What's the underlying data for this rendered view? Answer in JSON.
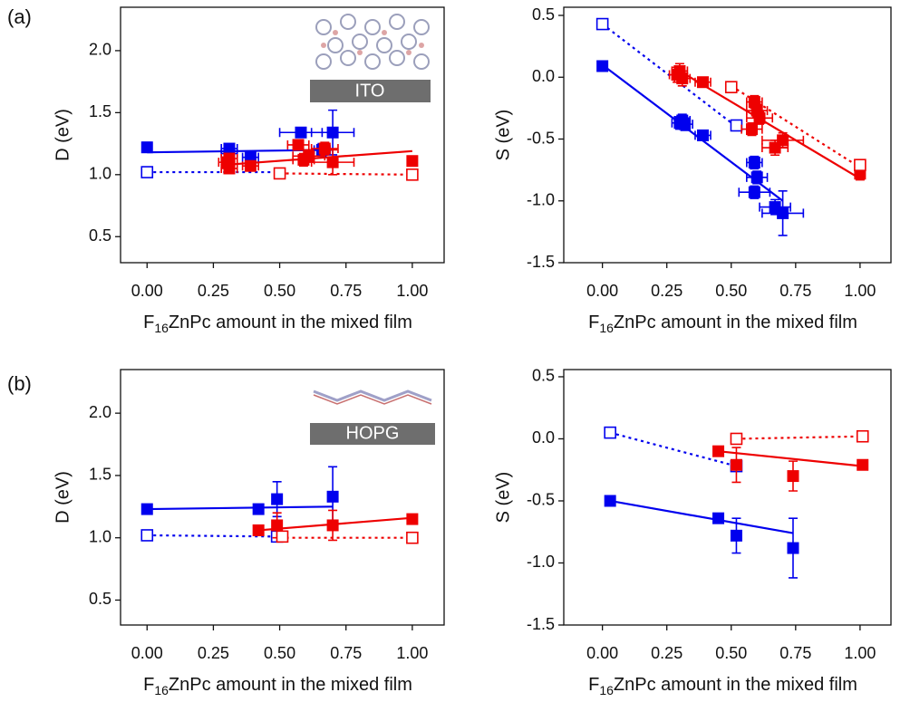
{
  "chart_data": [
    {
      "type": "scatter",
      "panel_label": "(a)",
      "y_label": "D (eV)",
      "x_label": [
        "F",
        "16",
        "ZnPc amount in the mixed film"
      ],
      "inset_label": "ITO",
      "xlim": [
        -0.1,
        1.12
      ],
      "ylim": [
        0.29,
        2.35
      ],
      "xticks": [
        {
          "value": 0,
          "label": "0.00"
        },
        {
          "value": 0.25,
          "label": "0.25"
        },
        {
          "value": 0.5,
          "label": "0.50"
        },
        {
          "value": 0.75,
          "label": "0.75"
        },
        {
          "value": 1,
          "label": "1.00"
        }
      ],
      "yticks": [
        0.5,
        {
          "value": 1,
          "label": "1.0"
        },
        1.5,
        {
          "value": 2,
          "label": "2.0"
        }
      ],
      "series": [
        {
          "color": "#0000ee",
          "marker": "filled",
          "x": [
            0,
            0.31,
            0.31,
            0.39,
            0.58,
            0.66,
            0.7
          ],
          "values": [
            1.22,
            1.21,
            1.17,
            1.14,
            1.34,
            1.2,
            1.34
          ],
          "xerr": [
            null,
            0.03,
            0.03,
            0.03,
            0.08,
            0.03,
            0.08
          ],
          "yerr": [
            0.04,
            0.03,
            0.03,
            null,
            0.03,
            0.05,
            0.18
          ]
        },
        {
          "color": "#0000ee",
          "marker": "open",
          "x": [
            0
          ],
          "values": [
            1.02
          ],
          "xerr": [
            null
          ],
          "yerr": [
            null
          ]
        },
        {
          "color": "#ee0000",
          "marker": "filled",
          "x": [
            0.3,
            0.31,
            0.31,
            0.39,
            0.57,
            0.59,
            0.61,
            0.67,
            0.7,
            1
          ],
          "values": [
            1.1,
            1.05,
            1.13,
            1.07,
            1.24,
            1.12,
            1.15,
            1.21,
            1.1,
            1.11
          ],
          "xerr": [
            0.03,
            0.03,
            0.03,
            0.03,
            0.04,
            0.04,
            0.06,
            0.05,
            0.08,
            null
          ],
          "yerr": [
            0.04,
            0.04,
            0.04,
            0.03,
            0.04,
            0.05,
            0.05,
            0.05,
            0.1,
            0.03
          ]
        },
        {
          "color": "#ee0000",
          "marker": "open",
          "x": [
            0.5,
            1
          ],
          "values": [
            1.01,
            1.0
          ],
          "xerr": [
            null,
            null
          ],
          "yerr": [
            null,
            null
          ]
        }
      ],
      "fits": [
        {
          "color": "#0000ee",
          "style": "solid",
          "x": [
            0,
            0.7
          ],
          "values": [
            1.18,
            1.2
          ]
        },
        {
          "color": "#ee0000",
          "style": "solid",
          "x": [
            0.3,
            1
          ],
          "values": [
            1.08,
            1.19
          ]
        },
        {
          "color": "#0000ee",
          "style": "dotted",
          "x": [
            0,
            0.5
          ],
          "values": [
            1.02,
            1.02
          ]
        },
        {
          "color": "#ee0000",
          "style": "dotted",
          "x": [
            0.5,
            1
          ],
          "values": [
            1.01,
            1.0
          ]
        }
      ]
    },
    {
      "type": "scatter",
      "y_label": "S (eV)",
      "x_label": [
        "F",
        "16",
        "ZnPc amount in the mixed film"
      ],
      "xlim": [
        -0.15,
        1.12
      ],
      "ylim": [
        -1.5,
        0.566
      ],
      "xticks": [
        {
          "value": 0,
          "label": "0.00"
        },
        {
          "value": 0.25,
          "label": "0.25"
        },
        {
          "value": 0.5,
          "label": "0.50"
        },
        {
          "value": 0.75,
          "label": "0.75"
        },
        {
          "value": 1,
          "label": "1.00"
        }
      ],
      "yticks": [
        0.5,
        {
          "value": 0,
          "label": "0.0"
        },
        -0.5,
        {
          "value": -1,
          "label": "-1.0"
        },
        -1.5
      ],
      "series": [
        {
          "color": "#0000ee",
          "marker": "filled",
          "x": [
            0,
            0.3,
            0.31,
            0.32,
            0.39,
            0.59,
            0.6,
            0.59,
            0.67,
            0.7
          ],
          "values": [
            0.09,
            -0.37,
            -0.35,
            -0.38,
            -0.47,
            -0.69,
            -0.81,
            -0.93,
            -1.05,
            -1.1
          ],
          "xerr": [
            null,
            0.03,
            0.03,
            0.03,
            0.03,
            0.03,
            0.04,
            0.06,
            0.06,
            0.08
          ],
          "yerr": [
            0.03,
            0.05,
            0.05,
            0.05,
            0.04,
            0.05,
            0.05,
            0.05,
            0.06,
            0.18
          ]
        },
        {
          "color": "#0000ee",
          "marker": "open",
          "x": [
            0,
            0.52
          ],
          "values": [
            0.43,
            -0.39
          ],
          "xerr": [
            null,
            null
          ],
          "yerr": [
            null,
            null
          ]
        },
        {
          "color": "#ee0000",
          "marker": "filled",
          "x": [
            0.29,
            0.3,
            0.31,
            0.39,
            0.58,
            0.59,
            0.6,
            0.61,
            0.67,
            0.7,
            1
          ],
          "values": [
            0.02,
            0.05,
            -0.01,
            -0.04,
            -0.42,
            -0.2,
            -0.27,
            -0.33,
            -0.57,
            -0.51,
            -0.78
          ],
          "xerr": [
            0.03,
            0.03,
            0.03,
            0.03,
            0.04,
            0.03,
            0.04,
            0.05,
            0.05,
            0.08,
            null
          ],
          "yerr": [
            0.06,
            0.06,
            0.06,
            0.04,
            0.05,
            0.05,
            0.05,
            0.05,
            0.06,
            0.06,
            0.05
          ]
        },
        {
          "color": "#ee0000",
          "marker": "open",
          "x": [
            0.5,
            1
          ],
          "values": [
            -0.08,
            -0.71
          ],
          "xerr": [
            null,
            null
          ],
          "yerr": [
            null,
            null
          ]
        }
      ],
      "fits": [
        {
          "color": "#0000ee",
          "style": "solid",
          "x": [
            0,
            0.7
          ],
          "values": [
            0.1,
            -1.0
          ]
        },
        {
          "color": "#ee0000",
          "style": "solid",
          "x": [
            0.3,
            1
          ],
          "values": [
            0.05,
            -0.82
          ]
        },
        {
          "color": "#0000ee",
          "style": "dotted",
          "x": [
            0,
            0.52
          ],
          "values": [
            0.43,
            -0.4
          ]
        },
        {
          "color": "#ee0000",
          "style": "dotted",
          "x": [
            0.5,
            1
          ],
          "values": [
            -0.07,
            -0.73
          ]
        }
      ]
    },
    {
      "type": "scatter",
      "panel_label": "(b)",
      "y_label": "D (eV)",
      "x_label": [
        "F",
        "16",
        "ZnPc amount in the mixed film"
      ],
      "inset_label": "HOPG",
      "xlim": [
        -0.1,
        1.12
      ],
      "ylim": [
        0.3,
        2.35
      ],
      "xticks": [
        {
          "value": 0,
          "label": "0.00"
        },
        {
          "value": 0.25,
          "label": "0.25"
        },
        {
          "value": 0.5,
          "label": "0.50"
        },
        {
          "value": 0.75,
          "label": "0.75"
        },
        {
          "value": 1,
          "label": "1.00"
        }
      ],
      "yticks": [
        0.5,
        {
          "value": 1,
          "label": "1.0"
        },
        1.5,
        {
          "value": 2,
          "label": "2.0"
        }
      ],
      "series": [
        {
          "color": "#0000ee",
          "marker": "filled",
          "x": [
            0,
            0.42,
            0.49,
            0.7
          ],
          "values": [
            1.23,
            1.23,
            1.31,
            1.33
          ],
          "xerr": [
            null,
            null,
            null,
            null
          ],
          "yerr": [
            null,
            null,
            0.14,
            0.24
          ]
        },
        {
          "color": "#0000ee",
          "marker": "open",
          "x": [
            0,
            0.49
          ],
          "values": [
            1.02,
            1.01
          ],
          "xerr": [
            null,
            null
          ],
          "yerr": [
            null,
            null
          ]
        },
        {
          "color": "#ee0000",
          "marker": "filled",
          "x": [
            0.42,
            0.49,
            0.7,
            1
          ],
          "values": [
            1.06,
            1.1,
            1.1,
            1.15
          ],
          "xerr": [
            null,
            null,
            null,
            null
          ],
          "yerr": [
            null,
            0.1,
            0.12,
            null
          ]
        },
        {
          "color": "#ee0000",
          "marker": "open",
          "x": [
            0.51,
            1
          ],
          "values": [
            1.01,
            1.0
          ],
          "xerr": [
            null,
            null
          ],
          "yerr": [
            null,
            null
          ]
        }
      ],
      "fits": [
        {
          "color": "#0000ee",
          "style": "solid",
          "x": [
            0,
            0.7
          ],
          "values": [
            1.23,
            1.25
          ]
        },
        {
          "color": "#ee0000",
          "style": "solid",
          "x": [
            0.42,
            1
          ],
          "values": [
            1.06,
            1.16
          ]
        },
        {
          "color": "#0000ee",
          "style": "dotted",
          "x": [
            0,
            0.49
          ],
          "values": [
            1.02,
            1.01
          ]
        },
        {
          "color": "#ee0000",
          "style": "dotted",
          "x": [
            0.5,
            1
          ],
          "values": [
            1.0,
            1.0
          ]
        }
      ]
    },
    {
      "type": "scatter",
      "y_label": "S (eV)",
      "x_label": [
        "F",
        "16",
        "ZnPc amount in the mixed film"
      ],
      "xlim": [
        -0.15,
        1.12
      ],
      "ylim": [
        -1.5,
        0.558
      ],
      "xticks": [
        {
          "value": 0,
          "label": "0.00"
        },
        {
          "value": 0.25,
          "label": "0.25"
        },
        {
          "value": 0.5,
          "label": "0.50"
        },
        {
          "value": 0.75,
          "label": "0.75"
        },
        {
          "value": 1,
          "label": "1.00"
        }
      ],
      "yticks": [
        0.5,
        {
          "value": 0,
          "label": "0.0"
        },
        -0.5,
        {
          "value": -1,
          "label": "-1.0"
        },
        -1.5
      ],
      "series": [
        {
          "color": "#0000ee",
          "marker": "filled",
          "x": [
            0.03,
            0.45,
            0.52,
            0.74
          ],
          "values": [
            -0.5,
            -0.64,
            -0.78,
            -0.88
          ],
          "xerr": [
            null,
            null,
            null,
            null
          ],
          "yerr": [
            null,
            null,
            0.14,
            0.24
          ]
        },
        {
          "color": "#0000ee",
          "marker": "open",
          "x": [
            0.03,
            0.52
          ],
          "values": [
            0.05,
            -0.22
          ],
          "xerr": [
            null,
            null
          ],
          "yerr": [
            null,
            null
          ]
        },
        {
          "color": "#ee0000",
          "marker": "filled",
          "x": [
            0.45,
            0.52,
            0.74,
            1.01
          ],
          "values": [
            -0.1,
            -0.21,
            -0.3,
            -0.21
          ],
          "xerr": [
            null,
            null,
            null,
            null
          ],
          "yerr": [
            null,
            0.14,
            0.12,
            null
          ]
        },
        {
          "color": "#ee0000",
          "marker": "open",
          "x": [
            0.52,
            1.01
          ],
          "values": [
            0.0,
            0.02
          ],
          "xerr": [
            null,
            null
          ],
          "yerr": [
            null,
            null
          ]
        }
      ],
      "fits": [
        {
          "color": "#0000ee",
          "style": "solid",
          "x": [
            0.03,
            0.74
          ],
          "values": [
            -0.5,
            -0.76
          ]
        },
        {
          "color": "#ee0000",
          "style": "solid",
          "x": [
            0.45,
            1.01
          ],
          "values": [
            -0.1,
            -0.22
          ]
        },
        {
          "color": "#0000ee",
          "style": "dotted",
          "x": [
            0.03,
            0.52
          ],
          "values": [
            0.05,
            -0.22
          ]
        },
        {
          "color": "#ee0000",
          "style": "dotted",
          "x": [
            0.52,
            1.01
          ],
          "values": [
            0.0,
            0.02
          ]
        }
      ]
    }
  ]
}
